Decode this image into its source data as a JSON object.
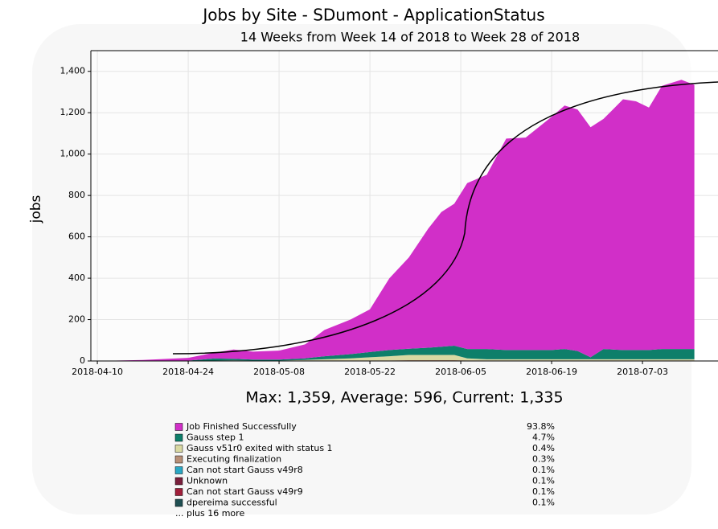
{
  "chart_data": {
    "type": "stacked_area",
    "title": "Jobs by Site - SDumont - ApplicationStatus",
    "subtitle": "14 Weeks from Week 14 of 2018 to Week 28 of 2018",
    "ylabel": "jobs",
    "summary": "Max: 1,359, Average: 596, Current: 1,335",
    "more_label": "... plus 16 more",
    "x": [
      "2018-04-10",
      "2018-04-17",
      "2018-04-24",
      "2018-04-28",
      "2018-05-01",
      "2018-05-04",
      "2018-05-08",
      "2018-05-12",
      "2018-05-15",
      "2018-05-19",
      "2018-05-22",
      "2018-05-25",
      "2018-05-28",
      "2018-05-31",
      "2018-06-02",
      "2018-06-04",
      "2018-06-06",
      "2018-06-09",
      "2018-06-12",
      "2018-06-15",
      "2018-06-19",
      "2018-06-21",
      "2018-06-23",
      "2018-06-25",
      "2018-06-27",
      "2018-06-30",
      "2018-07-02",
      "2018-07-04",
      "2018-07-06",
      "2018-07-09",
      "2018-07-11"
    ],
    "xlim": [
      "2018-04-09",
      "2018-07-16"
    ],
    "xticks": [
      "2018-04-10",
      "2018-04-24",
      "2018-05-08",
      "2018-05-22",
      "2018-06-05",
      "2018-06-19",
      "2018-07-03"
    ],
    "ylim": [
      0,
      1500
    ],
    "yticks": [
      0,
      200,
      400,
      600,
      800,
      {
        "value": 1000,
        "label": "1,000"
      },
      {
        "value": 1200,
        "label": "1,200"
      },
      {
        "value": 1400,
        "label": "1,400"
      }
    ],
    "grid": true,
    "series": [
      {
        "name": "Job Finished Successfully",
        "color": "#d12fc8",
        "percent_label": "93.8%",
        "values": [
          0,
          5,
          13,
          28,
          44,
          38,
          43,
          67,
          127,
          167,
          207,
          347,
          441,
          576,
          651,
          686,
          802,
          842,
          1022,
          1027,
          1127,
          1177,
          1167,
          1112,
          1112,
          1212,
          1202,
          1172,
          1272,
          1301,
          1277
        ]
      },
      {
        "name": "Gauss step 1",
        "color": "#0e7f6a",
        "percent_label": "4.7%",
        "values": [
          0,
          0,
          2,
          10,
          8,
          5,
          5,
          8,
          15,
          20,
          25,
          30,
          30,
          35,
          40,
          45,
          45,
          50,
          45,
          45,
          45,
          50,
          40,
          10,
          50,
          45,
          45,
          45,
          50,
          50,
          50
        ]
      },
      {
        "name": "Gauss v51r0 exited with status 1",
        "color": "#d9d9a2",
        "percent_label": "0.4%",
        "values": [
          0,
          0,
          0,
          0,
          0,
          0,
          0,
          2,
          5,
          10,
          15,
          20,
          25,
          25,
          25,
          25,
          10,
          5,
          5,
          5,
          5,
          5,
          5,
          5,
          5,
          5,
          5,
          5,
          5,
          5,
          5
        ]
      },
      {
        "name": "Executing finalization",
        "color": "#b88f77",
        "percent_label": "0.3%",
        "values": [
          0,
          0,
          0,
          2,
          3,
          2,
          2,
          3,
          3,
          3,
          3,
          3,
          4,
          4,
          4,
          4,
          3,
          3,
          3,
          3,
          3,
          3,
          3,
          3,
          3,
          3,
          3,
          3,
          3,
          3,
          3
        ]
      },
      {
        "name": "Can not start Gauss v49r8",
        "color": "#2aa7c4",
        "percent_label": "0.1%",
        "values": [
          0,
          0,
          0,
          0,
          0,
          0,
          0,
          0,
          0,
          0,
          0,
          0,
          0,
          0,
          0,
          0,
          0,
          0,
          0,
          0,
          0,
          0,
          0,
          0,
          0,
          0,
          0,
          0,
          0,
          0,
          0
        ]
      },
      {
        "name": "Unknown",
        "color": "#7a1f3c",
        "percent_label": "0.1%",
        "values": [
          0,
          0,
          0,
          0,
          0,
          0,
          0,
          0,
          0,
          0,
          0,
          0,
          0,
          0,
          0,
          0,
          0,
          0,
          0,
          0,
          0,
          0,
          0,
          0,
          0,
          0,
          0,
          0,
          0,
          0,
          0
        ]
      },
      {
        "name": "Can not start Gauss v49r9",
        "color": "#a11f3a",
        "percent_label": "0.1%",
        "values": [
          0,
          0,
          0,
          0,
          0,
          0,
          0,
          0,
          0,
          0,
          0,
          0,
          0,
          0,
          0,
          0,
          0,
          0,
          0,
          0,
          0,
          0,
          0,
          0,
          0,
          0,
          0,
          0,
          0,
          0,
          0
        ]
      },
      {
        "name": "dpereima successful",
        "color": "#1f4f52",
        "percent_label": "0.1%",
        "values": [
          0,
          0,
          0,
          0,
          0,
          0,
          0,
          0,
          0,
          0,
          0,
          0,
          0,
          0,
          0,
          0,
          0,
          0,
          0,
          0,
          0,
          0,
          0,
          0,
          0,
          0,
          0,
          0,
          0,
          0,
          0
        ]
      }
    ]
  }
}
